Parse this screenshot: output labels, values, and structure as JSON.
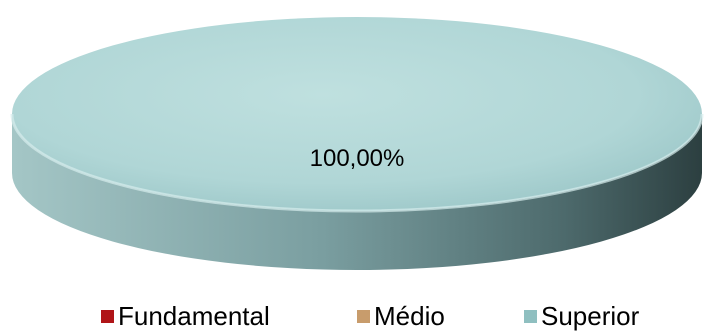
{
  "chart_data": {
    "type": "pie",
    "style": "3d",
    "categories": [
      "Fundamental",
      "Médio",
      "Superior"
    ],
    "values": [
      0,
      0,
      100
    ],
    "data_labels": [
      "",
      "",
      "100,00%"
    ],
    "colors": [
      "#b01518",
      "#c89c6c",
      "#8fbfc0"
    ],
    "legend": {
      "position": "bottom",
      "entries": [
        "Fundamental",
        "Médio",
        "Superior"
      ]
    }
  }
}
